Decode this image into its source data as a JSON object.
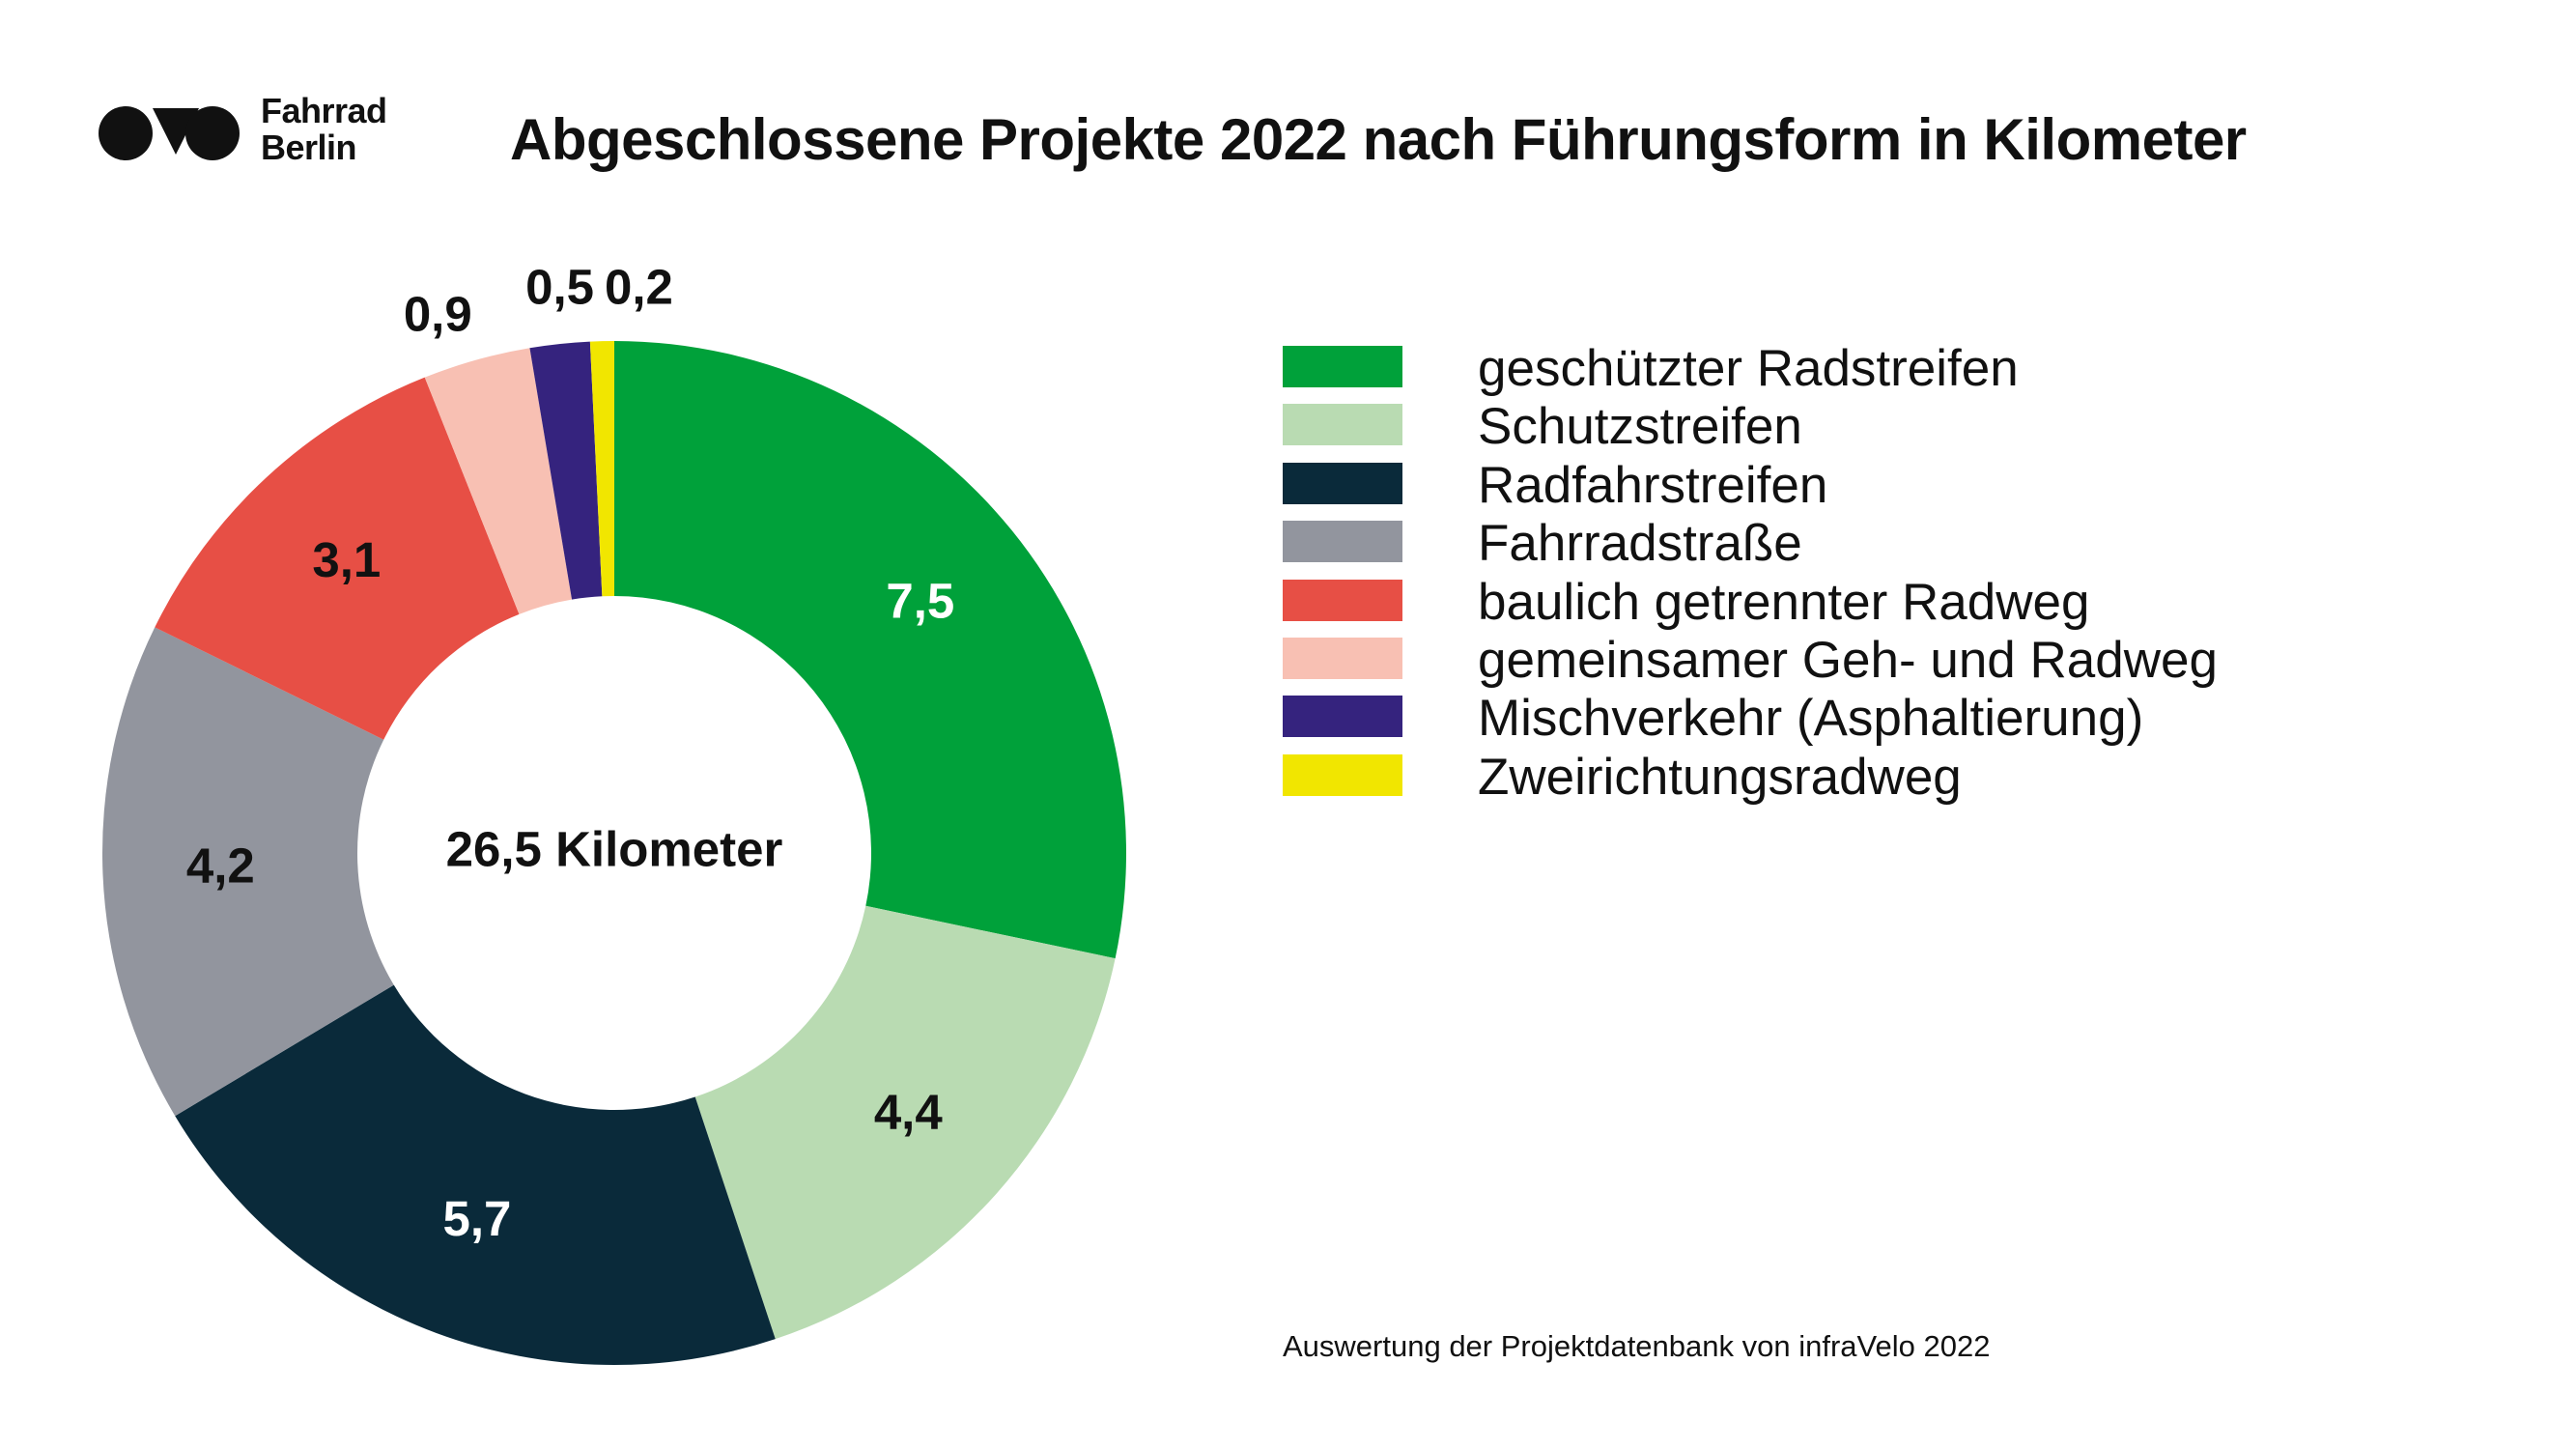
{
  "logo": {
    "line1": "Fahrrad",
    "line2": "Berlin"
  },
  "title": "Abgeschlossene Projekte 2022 nach Führungsform in Kilometer",
  "center_label": "26,5 Kilometer",
  "source": "Auswertung der Projektdatenbank von infraVelo 2022",
  "chart_data": {
    "type": "pie",
    "variant": "donut",
    "title": "Abgeschlossene Projekte 2022 nach Führungsform in Kilometer",
    "total_label": "26,5 Kilometer",
    "legend_position": "right",
    "slices": [
      {
        "name": "geschützter Radstreifen",
        "value": 7.5,
        "label": "7,5",
        "color": "#00a13a",
        "label_color": "#ffffff"
      },
      {
        "name": "Schutzstreifen",
        "value": 4.4,
        "label": "4,4",
        "color": "#b9dbb2",
        "label_color": "#111111"
      },
      {
        "name": "Radfahrstreifen",
        "value": 5.7,
        "label": "5,7",
        "color": "#0a2a3a",
        "label_color": "#ffffff"
      },
      {
        "name": "Fahrradstraße",
        "value": 4.2,
        "label": "4,2",
        "color": "#92959e",
        "label_color": "#111111"
      },
      {
        "name": "baulich getrennter Radweg",
        "value": 3.1,
        "label": "3,1",
        "color": "#e74f45",
        "label_color": "#111111"
      },
      {
        "name": "gemeinsamer Geh- und Radweg",
        "value": 0.9,
        "label": "0,9",
        "color": "#f8c0b3",
        "label_color": "#111111"
      },
      {
        "name": "Mischverkehr (Asphaltierung)",
        "value": 0.5,
        "label": "0,5",
        "color": "#35237e",
        "label_color": "#111111"
      },
      {
        "name": "Zweirichtungsradweg",
        "value": 0.2,
        "label": "0,2",
        "color": "#f1e600",
        "label_color": "#111111"
      }
    ]
  }
}
